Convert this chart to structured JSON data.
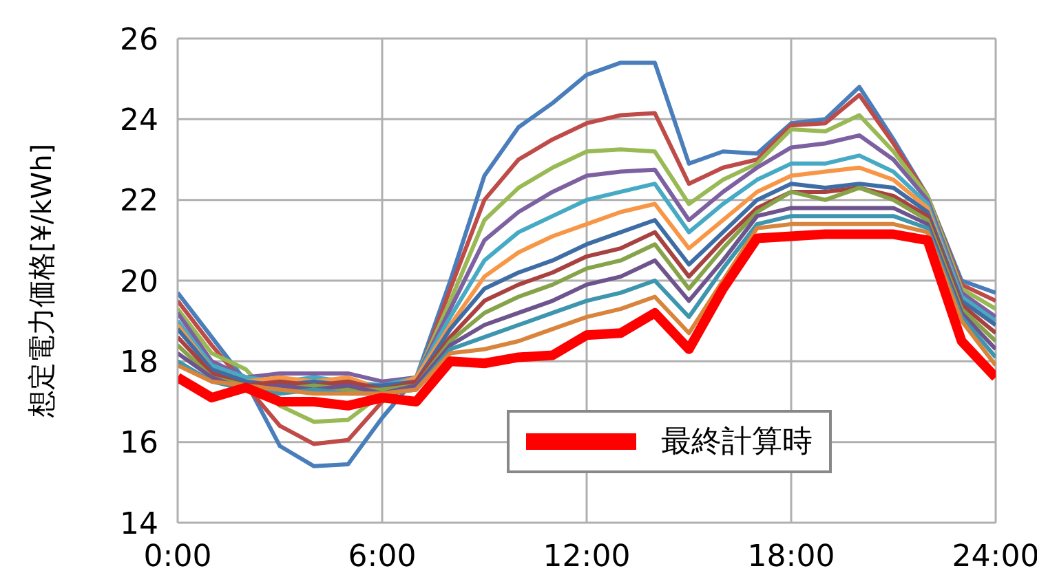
{
  "chart_data": {
    "type": "line",
    "ylabel": "想定電力価格[¥/kWh]",
    "x": [
      0,
      1,
      2,
      3,
      4,
      5,
      6,
      7,
      8,
      9,
      10,
      11,
      12,
      13,
      14,
      15,
      16,
      17,
      18,
      19,
      20,
      21,
      22,
      23,
      24
    ],
    "xlim": [
      0,
      24
    ],
    "xticks": [
      {
        "value": 0,
        "label": "0:00"
      },
      {
        "value": 6,
        "label": "6:00"
      },
      {
        "value": 12,
        "label": "12:00"
      },
      {
        "value": 18,
        "label": "18:00"
      },
      {
        "value": 24,
        "label": "24:00"
      }
    ],
    "ylim": [
      14,
      26
    ],
    "yticks": [
      14,
      16,
      18,
      20,
      22,
      24,
      26
    ],
    "grid": true,
    "legend": "bottom right",
    "marker": "none",
    "line_style": "solid",
    "series": [
      {
        "color": "#4a7ebb",
        "values": [
          19.7,
          18.6,
          17.5,
          15.9,
          15.4,
          15.45,
          16.6,
          17.6,
          20.0,
          22.6,
          23.8,
          24.4,
          25.1,
          25.4,
          25.4,
          22.9,
          23.2,
          23.15,
          23.9,
          24.0,
          24.8,
          23.5,
          22.1,
          20.0,
          19.7
        ]
      },
      {
        "color": "#be4b48",
        "values": [
          19.5,
          18.4,
          17.4,
          16.4,
          15.95,
          16.05,
          17.0,
          17.5,
          19.8,
          22.0,
          23.0,
          23.5,
          23.9,
          24.1,
          24.15,
          22.4,
          22.8,
          23.0,
          23.85,
          23.9,
          24.6,
          23.4,
          22.1,
          19.9,
          19.5
        ]
      },
      {
        "color": "#98b954",
        "values": [
          19.3,
          18.2,
          17.8,
          16.9,
          16.5,
          16.55,
          17.2,
          17.6,
          19.5,
          21.5,
          22.3,
          22.8,
          23.2,
          23.25,
          23.2,
          21.9,
          22.5,
          22.9,
          23.75,
          23.7,
          24.1,
          23.2,
          22.1,
          19.8,
          19.3
        ]
      },
      {
        "color": "#7d60a0",
        "values": [
          19.2,
          18.0,
          17.6,
          17.7,
          17.7,
          17.7,
          17.5,
          17.6,
          19.3,
          21.0,
          21.7,
          22.2,
          22.6,
          22.7,
          22.75,
          21.5,
          22.2,
          22.8,
          23.3,
          23.4,
          23.6,
          23.0,
          22.0,
          19.7,
          19.1
        ]
      },
      {
        "color": "#46aac5",
        "values": [
          19.0,
          17.9,
          17.6,
          17.5,
          17.6,
          17.5,
          17.4,
          17.6,
          19.1,
          20.5,
          21.2,
          21.6,
          22.0,
          22.2,
          22.4,
          21.2,
          21.9,
          22.5,
          22.9,
          22.9,
          23.1,
          22.7,
          21.9,
          19.6,
          19.0
        ]
      },
      {
        "color": "#f79646",
        "values": [
          18.9,
          17.8,
          17.5,
          17.6,
          17.5,
          17.6,
          17.3,
          17.6,
          18.9,
          20.1,
          20.7,
          21.1,
          21.4,
          21.7,
          21.9,
          20.8,
          21.5,
          22.2,
          22.6,
          22.7,
          22.8,
          22.5,
          21.8,
          19.5,
          18.9
        ]
      },
      {
        "color": "#3e6da5",
        "values": [
          18.8,
          17.8,
          17.5,
          17.4,
          17.5,
          17.4,
          17.4,
          17.5,
          18.8,
          19.8,
          20.2,
          20.5,
          20.9,
          21.2,
          21.5,
          20.4,
          21.2,
          22.0,
          22.4,
          22.3,
          22.4,
          22.3,
          21.7,
          19.5,
          18.9
        ]
      },
      {
        "color": "#a84240",
        "values": [
          18.6,
          17.7,
          17.4,
          17.5,
          17.4,
          17.5,
          17.3,
          17.5,
          18.6,
          19.5,
          19.9,
          20.2,
          20.6,
          20.8,
          21.2,
          20.1,
          21.0,
          21.8,
          22.2,
          22.2,
          22.3,
          22.1,
          21.6,
          19.4,
          18.7
        ]
      },
      {
        "color": "#86a34a",
        "values": [
          18.4,
          17.6,
          17.4,
          17.3,
          17.4,
          17.3,
          17.3,
          17.4,
          18.5,
          19.2,
          19.6,
          19.9,
          20.3,
          20.5,
          20.9,
          19.8,
          20.8,
          21.7,
          22.2,
          22.0,
          22.3,
          22.0,
          21.5,
          19.3,
          18.5
        ]
      },
      {
        "color": "#6e548d",
        "values": [
          18.2,
          17.6,
          17.3,
          17.4,
          17.3,
          17.4,
          17.2,
          17.4,
          18.4,
          18.9,
          19.2,
          19.5,
          19.9,
          20.1,
          20.5,
          19.5,
          20.5,
          21.6,
          21.8,
          21.8,
          21.8,
          21.8,
          21.4,
          19.2,
          18.3
        ]
      },
      {
        "color": "#3d96ae",
        "values": [
          18.0,
          17.5,
          17.3,
          17.2,
          17.3,
          17.2,
          17.2,
          17.3,
          18.3,
          18.6,
          18.9,
          19.2,
          19.5,
          19.7,
          20.0,
          19.1,
          20.3,
          21.4,
          21.6,
          21.6,
          21.6,
          21.6,
          21.3,
          19.1,
          18.1
        ]
      },
      {
        "color": "#d9843c",
        "values": [
          17.9,
          17.5,
          17.4,
          17.3,
          17.2,
          17.2,
          17.2,
          17.3,
          18.2,
          18.3,
          18.5,
          18.8,
          19.1,
          19.3,
          19.6,
          18.7,
          20.0,
          21.3,
          21.4,
          21.4,
          21.4,
          21.4,
          21.2,
          19.0,
          17.9
        ]
      },
      {
        "name": "最終計算時",
        "color": "#ff0000",
        "values": [
          17.6,
          17.1,
          17.35,
          17.0,
          17.0,
          16.9,
          17.1,
          17.0,
          18.0,
          17.95,
          18.1,
          18.15,
          18.65,
          18.7,
          19.2,
          18.3,
          19.8,
          21.05,
          21.1,
          21.15,
          21.15,
          21.15,
          21.0,
          18.5,
          17.6
        ]
      }
    ]
  }
}
